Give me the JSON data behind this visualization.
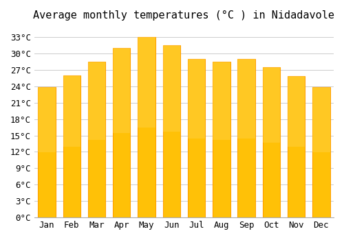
{
  "title": "Average monthly temperatures (°C ) in Nidadavole",
  "months": [
    "Jan",
    "Feb",
    "Mar",
    "Apr",
    "May",
    "Jun",
    "Jul",
    "Aug",
    "Sep",
    "Oct",
    "Nov",
    "Dec"
  ],
  "values": [
    23.8,
    26.0,
    28.5,
    31.0,
    33.0,
    31.5,
    29.0,
    28.5,
    29.0,
    27.5,
    25.8,
    23.8
  ],
  "bar_color_face": "#FFC107",
  "bar_color_edge": "#FFA000",
  "background_color": "#FFFFFF",
  "plot_bg_color": "#FFFFFF",
  "grid_color": "#CCCCCC",
  "ylim": [
    0,
    35
  ],
  "ytick_step": 3,
  "title_fontsize": 11,
  "tick_fontsize": 9,
  "font_family": "monospace"
}
